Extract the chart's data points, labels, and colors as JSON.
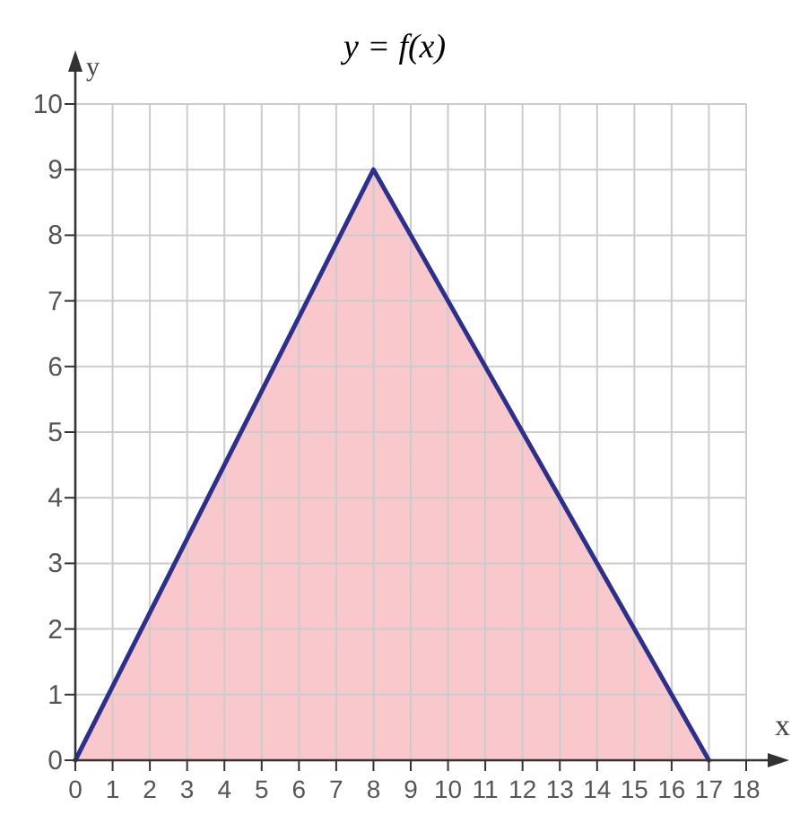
{
  "chart_data": {
    "type": "area",
    "title": "y = f(x)",
    "xlabel": "x",
    "ylabel": "y",
    "x": [
      0,
      8,
      17
    ],
    "series": [
      {
        "color": "#f8c8cc",
        "values": [
          0,
          9,
          0
        ]
      }
    ],
    "xlim": [
      0,
      18
    ],
    "xticks": [
      0,
      1,
      2,
      3,
      4,
      5,
      6,
      7,
      8,
      9,
      10,
      11,
      12,
      13,
      14,
      15,
      16,
      17,
      18
    ],
    "ylim": [
      0,
      10
    ],
    "yticks": [
      0,
      1,
      2,
      3,
      4,
      5,
      6,
      7,
      8,
      9,
      10
    ],
    "grid": true
  }
}
